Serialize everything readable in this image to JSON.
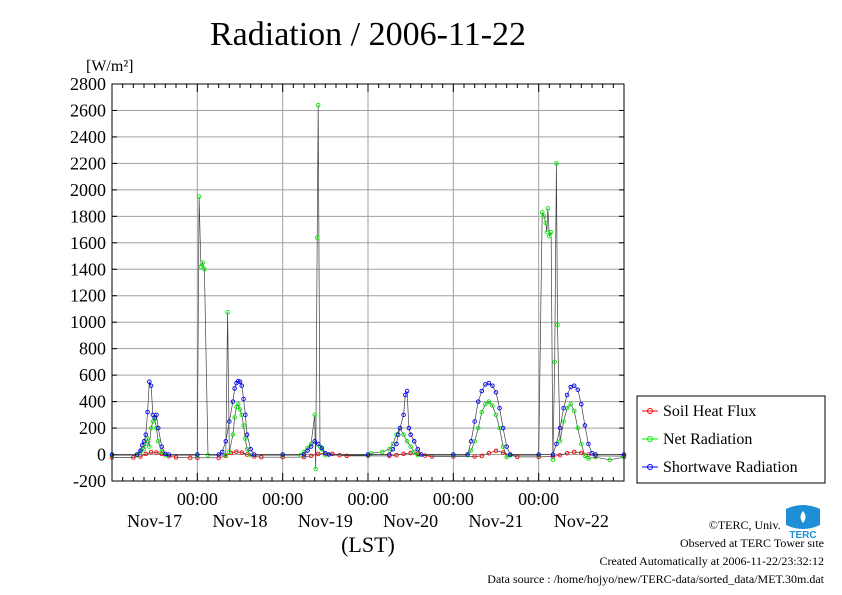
{
  "chart_data": {
    "type": "line",
    "title": "Radiation / 2006-11-22",
    "ylabel": "[W/m²]",
    "xlabel": "(LST)",
    "ylim": [
      -200,
      2800
    ],
    "yticks": [
      -200,
      0,
      200,
      400,
      600,
      800,
      1000,
      1200,
      1400,
      1600,
      1800,
      2000,
      2200,
      2400,
      2600,
      2800
    ],
    "xlim": [
      0,
      144
    ],
    "xtick_hours": [
      24,
      48,
      72,
      96,
      120
    ],
    "xtick_label": "00:00",
    "date_labels": [
      {
        "hour": 12,
        "label": "Nov-17"
      },
      {
        "hour": 36,
        "label": "Nov-18"
      },
      {
        "hour": 60,
        "label": "Nov-19"
      },
      {
        "hour": 84,
        "label": "Nov-20"
      },
      {
        "hour": 108,
        "label": "Nov-21"
      },
      {
        "hour": 132,
        "label": "Nov-22"
      }
    ],
    "grid": true,
    "legend_position": "right",
    "series": [
      {
        "name": "Soil Heat Flux",
        "color": "#ff0000",
        "points": [
          [
            0,
            -22
          ],
          [
            6,
            -22
          ],
          [
            8,
            -15
          ],
          [
            9.5,
            5
          ],
          [
            11,
            18
          ],
          [
            12.5,
            15
          ],
          [
            14,
            5
          ],
          [
            16,
            -12
          ],
          [
            18,
            -22
          ],
          [
            22,
            -25
          ],
          [
            24,
            -25
          ],
          [
            30,
            -25
          ],
          [
            32,
            -10
          ],
          [
            33.5,
            12
          ],
          [
            35,
            22
          ],
          [
            36.5,
            15
          ],
          [
            38,
            0
          ],
          [
            40,
            -15
          ],
          [
            42,
            -20
          ],
          [
            48,
            -20
          ],
          [
            54,
            -20
          ],
          [
            56,
            -10
          ],
          [
            58,
            5
          ],
          [
            60,
            8
          ],
          [
            62,
            5
          ],
          [
            64,
            -5
          ],
          [
            66,
            -10
          ],
          [
            72,
            -10
          ],
          [
            78,
            -10
          ],
          [
            80,
            -5
          ],
          [
            82,
            5
          ],
          [
            84,
            12
          ],
          [
            86,
            5
          ],
          [
            88,
            -8
          ],
          [
            90,
            -15
          ],
          [
            96,
            -15
          ],
          [
            102,
            -15
          ],
          [
            104,
            -10
          ],
          [
            106,
            10
          ],
          [
            108,
            28
          ],
          [
            110,
            15
          ],
          [
            112,
            -5
          ],
          [
            114,
            -18
          ],
          [
            120,
            -18
          ],
          [
            124,
            -15
          ],
          [
            126,
            -5
          ],
          [
            128,
            10
          ],
          [
            130,
            20
          ],
          [
            132,
            12
          ],
          [
            134,
            0
          ],
          [
            136,
            -10
          ],
          [
            144,
            -12
          ]
        ]
      },
      {
        "name": "Net Radiation",
        "color": "#00ee00",
        "points": [
          [
            0,
            -5
          ],
          [
            7,
            -5
          ],
          [
            8,
            20
          ],
          [
            9,
            40
          ],
          [
            9.5,
            80
          ],
          [
            10,
            120
          ],
          [
            10.5,
            60
          ],
          [
            11,
            200
          ],
          [
            11.5,
            250
          ],
          [
            12,
            270
          ],
          [
            12.5,
            200
          ],
          [
            13,
            100
          ],
          [
            14,
            20
          ],
          [
            15,
            -5
          ],
          [
            24,
            -5
          ],
          [
            24.5,
            1950
          ],
          [
            25,
            1420
          ],
          [
            25.5,
            1450
          ],
          [
            26,
            1400
          ],
          [
            27,
            -5
          ],
          [
            32,
            -5
          ],
          [
            32.5,
            1075
          ],
          [
            33,
            20
          ],
          [
            34,
            150
          ],
          [
            34.5,
            280
          ],
          [
            35,
            360
          ],
          [
            35.5,
            380
          ],
          [
            36,
            340
          ],
          [
            36.5,
            300
          ],
          [
            37,
            220
          ],
          [
            37.5,
            120
          ],
          [
            38,
            40
          ],
          [
            39,
            -5
          ],
          [
            48,
            -5
          ],
          [
            53,
            -5
          ],
          [
            54,
            20
          ],
          [
            55,
            50
          ],
          [
            56,
            80
          ],
          [
            57,
            300
          ],
          [
            57.3,
            -110
          ],
          [
            57.7,
            1640
          ],
          [
            58,
            2640
          ],
          [
            58.5,
            60
          ],
          [
            59,
            40
          ],
          [
            60,
            -5
          ],
          [
            72,
            -5
          ],
          [
            73,
            10
          ],
          [
            76,
            20
          ],
          [
            78,
            40
          ],
          [
            79,
            80
          ],
          [
            80,
            150
          ],
          [
            81,
            200
          ],
          [
            82,
            150
          ],
          [
            83,
            100
          ],
          [
            84,
            60
          ],
          [
            85,
            20
          ],
          [
            86,
            -5
          ],
          [
            96,
            -5
          ],
          [
            100,
            -5
          ],
          [
            101,
            30
          ],
          [
            102,
            100
          ],
          [
            103,
            200
          ],
          [
            104,
            320
          ],
          [
            105,
            380
          ],
          [
            106,
            400
          ],
          [
            107,
            370
          ],
          [
            108,
            300
          ],
          [
            109,
            200
          ],
          [
            110,
            60
          ],
          [
            111,
            -20
          ],
          [
            112,
            -5
          ],
          [
            120,
            -5
          ],
          [
            121,
            1830
          ],
          [
            121.5,
            1800
          ],
          [
            122,
            1750
          ],
          [
            122.3,
            1680
          ],
          [
            122.6,
            1860
          ],
          [
            123,
            1650
          ],
          [
            123.5,
            1680
          ],
          [
            124,
            -40
          ],
          [
            124.5,
            700
          ],
          [
            125,
            2200
          ],
          [
            125.3,
            980
          ],
          [
            126,
            100
          ],
          [
            127,
            250
          ],
          [
            128,
            350
          ],
          [
            129,
            380
          ],
          [
            130,
            330
          ],
          [
            131,
            200
          ],
          [
            132,
            80
          ],
          [
            133,
            -10
          ],
          [
            134,
            -30
          ],
          [
            136,
            -20
          ],
          [
            140,
            -40
          ],
          [
            144,
            -20
          ]
        ]
      },
      {
        "name": "Shortwave Radiation",
        "color": "#0000ff",
        "points": [
          [
            0,
            0
          ],
          [
            7,
            0
          ],
          [
            8,
            30
          ],
          [
            8.5,
            70
          ],
          [
            9,
            100
          ],
          [
            9.5,
            150
          ],
          [
            10,
            320
          ],
          [
            10.5,
            550
          ],
          [
            11,
            520
          ],
          [
            11.5,
            300
          ],
          [
            12,
            280
          ],
          [
            12.5,
            300
          ],
          [
            13,
            200
          ],
          [
            14,
            60
          ],
          [
            15,
            5
          ],
          [
            16,
            0
          ],
          [
            24,
            0
          ],
          [
            30,
            0
          ],
          [
            31,
            20
          ],
          [
            32,
            100
          ],
          [
            33,
            250
          ],
          [
            34,
            400
          ],
          [
            34.5,
            500
          ],
          [
            35,
            540
          ],
          [
            35.5,
            555
          ],
          [
            36,
            550
          ],
          [
            36.5,
            520
          ],
          [
            37,
            420
          ],
          [
            37.5,
            300
          ],
          [
            38,
            150
          ],
          [
            39,
            40
          ],
          [
            40,
            0
          ],
          [
            48,
            0
          ],
          [
            54,
            0
          ],
          [
            55,
            30
          ],
          [
            56,
            60
          ],
          [
            57,
            100
          ],
          [
            58,
            80
          ],
          [
            59,
            50
          ],
          [
            60,
            10
          ],
          [
            61,
            0
          ],
          [
            72,
            0
          ],
          [
            78,
            0
          ],
          [
            79,
            40
          ],
          [
            80,
            80
          ],
          [
            80.5,
            150
          ],
          [
            81,
            200
          ],
          [
            82,
            300
          ],
          [
            82.5,
            450
          ],
          [
            83,
            480
          ],
          [
            83.5,
            200
          ],
          [
            84,
            150
          ],
          [
            85,
            100
          ],
          [
            86,
            40
          ],
          [
            87,
            0
          ],
          [
            96,
            0
          ],
          [
            100,
            0
          ],
          [
            101,
            100
          ],
          [
            102,
            250
          ],
          [
            103,
            400
          ],
          [
            104,
            480
          ],
          [
            105,
            530
          ],
          [
            106,
            540
          ],
          [
            107,
            520
          ],
          [
            108,
            470
          ],
          [
            109,
            350
          ],
          [
            110,
            200
          ],
          [
            111,
            60
          ],
          [
            112,
            0
          ],
          [
            120,
            0
          ],
          [
            124,
            0
          ],
          [
            125,
            80
          ],
          [
            126,
            200
          ],
          [
            127,
            350
          ],
          [
            128,
            450
          ],
          [
            129,
            510
          ],
          [
            130,
            520
          ],
          [
            131,
            490
          ],
          [
            132,
            380
          ],
          [
            133,
            220
          ],
          [
            134,
            80
          ],
          [
            135,
            10
          ],
          [
            136,
            0
          ],
          [
            144,
            0
          ]
        ]
      }
    ]
  },
  "credits": {
    "copyright": "©TERC, Univ. Tsukuba",
    "observed": "Observed at TERC Tower site",
    "created": "Created Automatically at 2006-11-22/23:32:12",
    "source": "Data source : /home/hojyo/new/TERC-data/sorted_data/MET.30m.dat"
  },
  "logo": {
    "text": "TERC",
    "color": "#1e8fd6"
  }
}
